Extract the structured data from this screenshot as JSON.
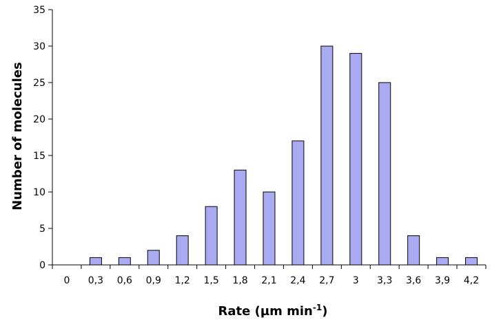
{
  "chart_data": {
    "type": "bar",
    "title": "",
    "xlabel": "Rate (µm min",
    "xlabel_superscript": "-1",
    "xlabel_suffix": ")",
    "ylabel": "Number of molecules",
    "categories": [
      "0",
      "0,3",
      "0,6",
      "0,9",
      "1,2",
      "1,5",
      "1,8",
      "2,1",
      "2,4",
      "2,7",
      "3",
      "3,3",
      "3,6",
      "3,9",
      "4,2"
    ],
    "values": [
      0,
      1,
      1,
      2,
      4,
      8,
      13,
      10,
      17,
      30,
      29,
      25,
      4,
      1,
      1
    ],
    "ylim": [
      0,
      35
    ],
    "yticks": [
      0,
      5,
      10,
      15,
      20,
      25,
      30,
      35
    ],
    "grid": false,
    "legend": "none",
    "colors": {
      "bar_fill": "#aaaaf2",
      "bar_stroke": "#000000",
      "axis": "#000000",
      "background": "#ffffff"
    }
  }
}
